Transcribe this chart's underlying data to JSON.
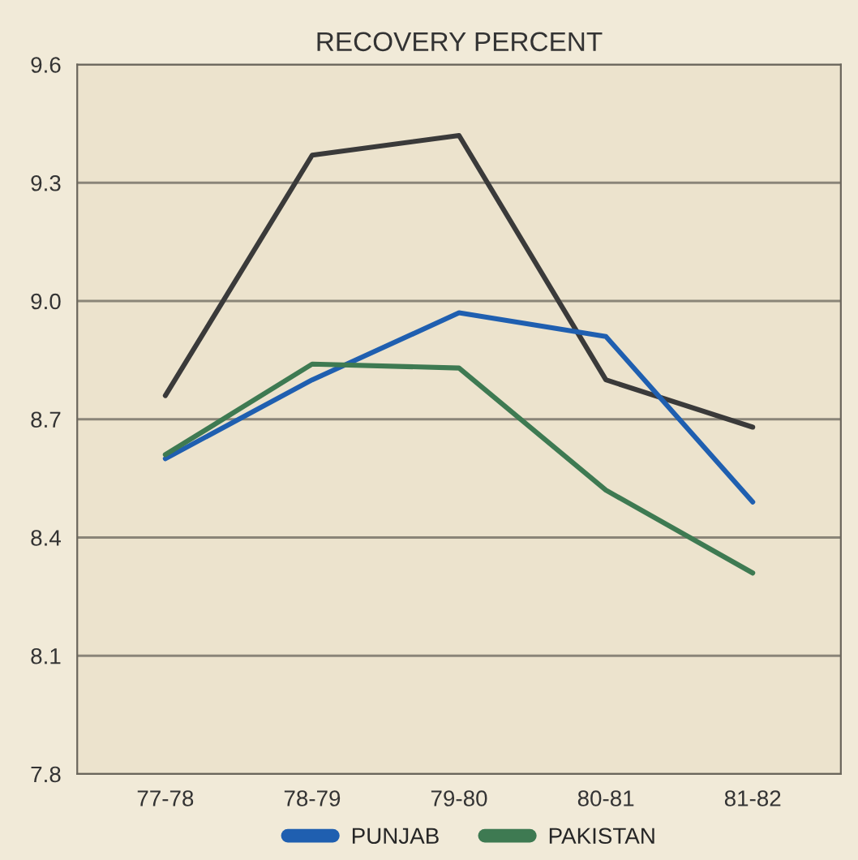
{
  "chart_data": {
    "type": "line",
    "title": "RECOVERY PERCENT",
    "categories": [
      "77-78",
      "78-79",
      "79-80",
      "80-81",
      "81-82"
    ],
    "series": [
      {
        "color": "#3a3a3a",
        "values": [
          8.76,
          9.37,
          9.42,
          8.8,
          8.68
        ]
      },
      {
        "name": "PUNJAB",
        "color": "#1f5fb0",
        "values": [
          8.6,
          8.8,
          8.97,
          8.91,
          8.49
        ]
      },
      {
        "name": "PAKISTAN",
        "color": "#3e7a52",
        "values": [
          8.61,
          8.84,
          8.83,
          8.52,
          8.31
        ]
      }
    ],
    "ylim": [
      7.8,
      9.6
    ],
    "yticks": [
      7.8,
      8.1,
      8.4,
      8.7,
      {
        "value": 9,
        "label": "9.0"
      },
      9.3,
      9.6
    ],
    "grid": "y",
    "legend": "bottom",
    "marker": "none",
    "line_style": "solid"
  }
}
